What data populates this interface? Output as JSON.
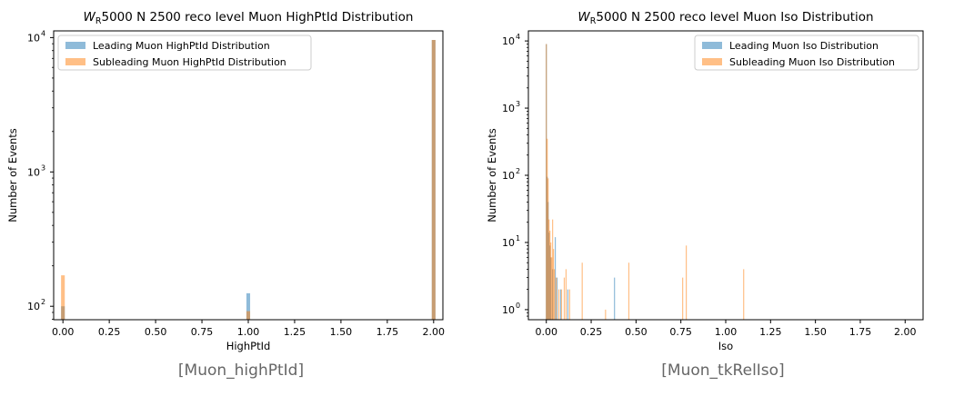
{
  "charts": [
    {
      "caption": "[Muon_highPtId]",
      "chart_data": {
        "type": "bar",
        "title_main": "5000 N 2500 reco level Muon HighPtId Distribution",
        "title_var": "W",
        "title_sub": "R",
        "xlabel": "HighPtId",
        "ylabel": "Number of Events",
        "xlim": [
          -0.05,
          2.05
        ],
        "ylim_log10": [
          1.9,
          4.05
        ],
        "yscale": "log",
        "xticks": [
          "0.00",
          "0.25",
          "0.50",
          "0.75",
          "1.00",
          "1.25",
          "1.50",
          "1.75",
          "2.00"
        ],
        "xtick_values": [
          0,
          0.25,
          0.5,
          0.75,
          1.0,
          1.25,
          1.5,
          1.75,
          2.0
        ],
        "yticks": [
          {
            "base": "10",
            "exp": "2",
            "value": 100
          },
          {
            "base": "10",
            "exp": "3",
            "value": 1000
          },
          {
            "base": "10",
            "exp": "4",
            "value": 10000
          }
        ],
        "legend_position": "top-left",
        "series": [
          {
            "name": "Leading Muon HighPtId Distribution",
            "color": "#1f77b4",
            "bars": [
              [
                0.0,
                100
              ],
              [
                1.0,
                125
              ],
              [
                2.0,
                9600
              ]
            ]
          },
          {
            "name": "Subleading Muon HighPtId Distribution",
            "color": "#ff7f0e",
            "bars": [
              [
                0.0,
                170
              ],
              [
                1.0,
                92
              ],
              [
                2.0,
                9600
              ]
            ]
          }
        ]
      }
    },
    {
      "caption": "[Muon_tkRelIso]",
      "chart_data": {
        "type": "bar",
        "title_main": "5000 N 2500 reco level Muon Iso Distribution",
        "title_var": "W",
        "title_sub": "R",
        "xlabel": "Iso",
        "ylabel": "Number of Events",
        "xlim": [
          -0.1,
          2.1
        ],
        "ylim_log10": [
          -0.15,
          4.15
        ],
        "yscale": "log",
        "xticks": [
          "0.00",
          "0.25",
          "0.50",
          "0.75",
          "1.00",
          "1.25",
          "1.50",
          "1.75",
          "2.00"
        ],
        "xtick_values": [
          0,
          0.25,
          0.5,
          0.75,
          1.0,
          1.25,
          1.5,
          1.75,
          2.0
        ],
        "yticks": [
          {
            "base": "10",
            "exp": "0",
            "value": 1
          },
          {
            "base": "10",
            "exp": "1",
            "value": 10
          },
          {
            "base": "10",
            "exp": "2",
            "value": 100
          },
          {
            "base": "10",
            "exp": "3",
            "value": 1000
          },
          {
            "base": "10",
            "exp": "4",
            "value": 10000
          }
        ],
        "legend_position": "top-right",
        "series": [
          {
            "name": "Leading Muon Iso Distribution",
            "color": "#1f77b4",
            "bars": [
              [
                0.0,
                9000
              ],
              [
                0.005,
                95
              ],
              [
                0.01,
                40
              ],
              [
                0.015,
                14
              ],
              [
                0.02,
                9
              ],
              [
                0.025,
                6
              ],
              [
                0.035,
                4
              ],
              [
                0.05,
                12
              ],
              [
                0.06,
                3
              ],
              [
                0.08,
                2
              ],
              [
                0.12,
                2
              ],
              [
                0.38,
                3
              ]
            ]
          },
          {
            "name": "Subleading Muon Iso Distribution",
            "color": "#ff7f0e",
            "bars": [
              [
                0.0,
                9000
              ],
              [
                0.005,
                350
              ],
              [
                0.01,
                90
              ],
              [
                0.015,
                22
              ],
              [
                0.02,
                15
              ],
              [
                0.025,
                10
              ],
              [
                0.03,
                6
              ],
              [
                0.035,
                22
              ],
              [
                0.04,
                8
              ],
              [
                0.045,
                4
              ],
              [
                0.055,
                3
              ],
              [
                0.07,
                2
              ],
              [
                0.085,
                2
              ],
              [
                0.1,
                3
              ],
              [
                0.11,
                4
              ],
              [
                0.13,
                2
              ],
              [
                0.2,
                5
              ],
              [
                0.33,
                1
              ],
              [
                0.46,
                5
              ],
              [
                0.76,
                3
              ],
              [
                0.78,
                9
              ],
              [
                1.1,
                4
              ]
            ]
          }
        ]
      }
    }
  ]
}
